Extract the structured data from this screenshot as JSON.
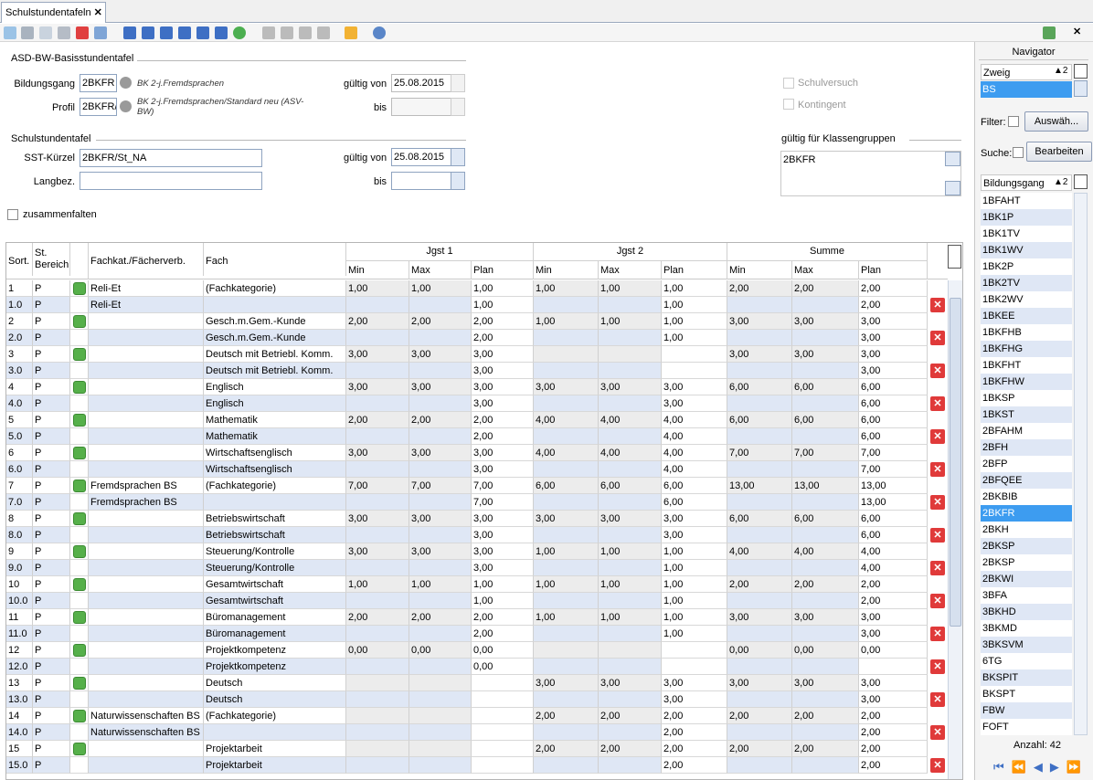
{
  "tab": {
    "title": "Schulstundentafeln"
  },
  "basis": {
    "title": "ASD-BW-Basisstundentafel",
    "bildungsgang_label": "Bildungsgang",
    "bildungsgang": "2BKFR",
    "bildungsgang_desc": "BK 2-j.Fremdsprachen",
    "profil_label": "Profil",
    "profil": "2BKFR/",
    "profil_desc": "BK 2-j.Fremdsprachen/Standard neu (ASV-BW)",
    "gueltig_von_label": "gültig von",
    "gueltig_von": "25.08.2015",
    "bis_label": "bis",
    "schulversuch": "Schulversuch",
    "kontingent": "Kontingent"
  },
  "sst": {
    "title": "Schulstundentafel",
    "kuerzel_label": "SST-Kürzel",
    "kuerzel": "2BKFR/St_NA",
    "langbez_label": "Langbez.",
    "gueltig_von_label": "gültig von",
    "gueltig_von": "25.08.2015",
    "bis_label": "bis",
    "klassengruppen_label": "gültig für Klassengruppen",
    "klassengruppen": [
      "2BKFR"
    ],
    "zusammenfalten": "zusammenfalten"
  },
  "table": {
    "headers": [
      "Sort.",
      "St. Bereich",
      "Fachkat./Fächerverb.",
      "Fach"
    ],
    "groups": [
      "Jgst 1",
      "Jgst 2",
      "Summe"
    ],
    "sub": [
      "Min",
      "Max",
      "Plan",
      "Min",
      "Max",
      "Plan",
      "Min",
      "Max",
      "Plan"
    ],
    "rows": [
      [
        "1",
        "P",
        "Reli-Et",
        "(Fachkategorie)",
        "1,00",
        "1,00",
        "1,00",
        "1,00",
        "1,00",
        "1,00",
        "2,00",
        "2,00",
        "2,00"
      ],
      [
        "1.0",
        "P",
        "Reli-Et",
        null,
        null,
        null,
        "1,00",
        null,
        null,
        "1,00",
        null,
        null,
        "2,00"
      ],
      [
        "2",
        "P",
        null,
        "Gesch.m.Gem.-Kunde",
        "2,00",
        "2,00",
        "2,00",
        "1,00",
        "1,00",
        "1,00",
        "3,00",
        "3,00",
        "3,00"
      ],
      [
        "2.0",
        "P",
        null,
        "Gesch.m.Gem.-Kunde",
        null,
        null,
        "2,00",
        null,
        null,
        "1,00",
        null,
        null,
        "3,00"
      ],
      [
        "3",
        "P",
        null,
        "Deutsch mit Betriebl. Komm.",
        "3,00",
        "3,00",
        "3,00",
        null,
        null,
        null,
        "3,00",
        "3,00",
        "3,00"
      ],
      [
        "3.0",
        "P",
        null,
        "Deutsch mit Betriebl. Komm.",
        null,
        null,
        "3,00",
        null,
        null,
        null,
        null,
        null,
        "3,00"
      ],
      [
        "4",
        "P",
        null,
        "Englisch",
        "3,00",
        "3,00",
        "3,00",
        "3,00",
        "3,00",
        "3,00",
        "6,00",
        "6,00",
        "6,00"
      ],
      [
        "4.0",
        "P",
        null,
        "Englisch",
        null,
        null,
        "3,00",
        null,
        null,
        "3,00",
        null,
        null,
        "6,00"
      ],
      [
        "5",
        "P",
        null,
        "Mathematik",
        "2,00",
        "2,00",
        "2,00",
        "4,00",
        "4,00",
        "4,00",
        "6,00",
        "6,00",
        "6,00"
      ],
      [
        "5.0",
        "P",
        null,
        "Mathematik",
        null,
        null,
        "2,00",
        null,
        null,
        "4,00",
        null,
        null,
        "6,00"
      ],
      [
        "6",
        "P",
        null,
        "Wirtschaftsenglisch",
        "3,00",
        "3,00",
        "3,00",
        "4,00",
        "4,00",
        "4,00",
        "7,00",
        "7,00",
        "7,00"
      ],
      [
        "6.0",
        "P",
        null,
        "Wirtschaftsenglisch",
        null,
        null,
        "3,00",
        null,
        null,
        "4,00",
        null,
        null,
        "7,00"
      ],
      [
        "7",
        "P",
        "Fremdsprachen BS",
        "(Fachkategorie)",
        "7,00",
        "7,00",
        "7,00",
        "6,00",
        "6,00",
        "6,00",
        "13,00",
        "13,00",
        "13,00"
      ],
      [
        "7.0",
        "P",
        "Fremdsprachen BS",
        null,
        null,
        null,
        "7,00",
        null,
        null,
        "6,00",
        null,
        null,
        "13,00"
      ],
      [
        "8",
        "P",
        null,
        "Betriebswirtschaft",
        "3,00",
        "3,00",
        "3,00",
        "3,00",
        "3,00",
        "3,00",
        "6,00",
        "6,00",
        "6,00"
      ],
      [
        "8.0",
        "P",
        null,
        "Betriebswirtschaft",
        null,
        null,
        "3,00",
        null,
        null,
        "3,00",
        null,
        null,
        "6,00"
      ],
      [
        "9",
        "P",
        null,
        "Steuerung/Kontrolle",
        "3,00",
        "3,00",
        "3,00",
        "1,00",
        "1,00",
        "1,00",
        "4,00",
        "4,00",
        "4,00"
      ],
      [
        "9.0",
        "P",
        null,
        "Steuerung/Kontrolle",
        null,
        null,
        "3,00",
        null,
        null,
        "1,00",
        null,
        null,
        "4,00"
      ],
      [
        "10",
        "P",
        null,
        "Gesamtwirtschaft",
        "1,00",
        "1,00",
        "1,00",
        "1,00",
        "1,00",
        "1,00",
        "2,00",
        "2,00",
        "2,00"
      ],
      [
        "10.0",
        "P",
        null,
        "Gesamtwirtschaft",
        null,
        null,
        "1,00",
        null,
        null,
        "1,00",
        null,
        null,
        "2,00"
      ],
      [
        "11",
        "P",
        null,
        "Büromanagement",
        "2,00",
        "2,00",
        "2,00",
        "1,00",
        "1,00",
        "1,00",
        "3,00",
        "3,00",
        "3,00"
      ],
      [
        "11.0",
        "P",
        null,
        "Büromanagement",
        null,
        null,
        "2,00",
        null,
        null,
        "1,00",
        null,
        null,
        "3,00"
      ],
      [
        "12",
        "P",
        null,
        "Projektkompetenz",
        "0,00",
        "0,00",
        "0,00",
        null,
        null,
        null,
        "0,00",
        "0,00",
        "0,00"
      ],
      [
        "12.0",
        "P",
        null,
        "Projektkompetenz",
        null,
        null,
        "0,00",
        null,
        null,
        null,
        null,
        null,
        null
      ],
      [
        "13",
        "P",
        null,
        "Deutsch",
        null,
        null,
        null,
        "3,00",
        "3,00",
        "3,00",
        "3,00",
        "3,00",
        "3,00"
      ],
      [
        "13.0",
        "P",
        null,
        "Deutsch",
        null,
        null,
        null,
        null,
        null,
        "3,00",
        null,
        null,
        "3,00"
      ],
      [
        "14",
        "P",
        "Naturwissenschaften BS",
        "(Fachkategorie)",
        null,
        null,
        null,
        "2,00",
        "2,00",
        "2,00",
        "2,00",
        "2,00",
        "2,00"
      ],
      [
        "14.0",
        "P",
        "Naturwissenschaften BS",
        null,
        null,
        null,
        null,
        null,
        null,
        "2,00",
        null,
        null,
        "2,00"
      ],
      [
        "15",
        "P",
        null,
        "Projektarbeit",
        null,
        null,
        null,
        "2,00",
        "2,00",
        "2,00",
        "2,00",
        "2,00",
        "2,00"
      ],
      [
        "15.0",
        "P",
        null,
        "Projektarbeit",
        null,
        null,
        null,
        null,
        null,
        "2,00",
        null,
        null,
        "2,00"
      ]
    ]
  },
  "navigator": {
    "title": "Navigator",
    "zweig_label": "Zweig",
    "zweig_sort": "▲2",
    "zweig_value": "BS",
    "filter_label": "Filter:",
    "filter_button": "Auswäh...",
    "suche_label": "Suche:",
    "suche_button": "Bearbeiten",
    "list_header": "Bildungsgang",
    "list_sort": "▲2",
    "items": [
      "1BFAHT",
      "1BK1P",
      "1BK1TV",
      "1BK1WV",
      "1BK2P",
      "1BK2TV",
      "1BK2WV",
      "1BKEE",
      "1BKFHB",
      "1BKFHG",
      "1BKFHT",
      "1BKFHW",
      "1BKSP",
      "1BKST",
      "2BFAHM",
      "2BFH",
      "2BFP",
      "2BFQEE",
      "2BKBIB",
      "2BKFR",
      "2BKH",
      "2BKSP",
      "2BKSP",
      "2BKWI",
      "3BFA",
      "3BKHD",
      "3BKMD",
      "3BKSVM",
      "6TG",
      "BKSPIT",
      "BKSPT",
      "FBW",
      "FOFT"
    ],
    "selected": 19,
    "count": "Anzahl: 42"
  }
}
